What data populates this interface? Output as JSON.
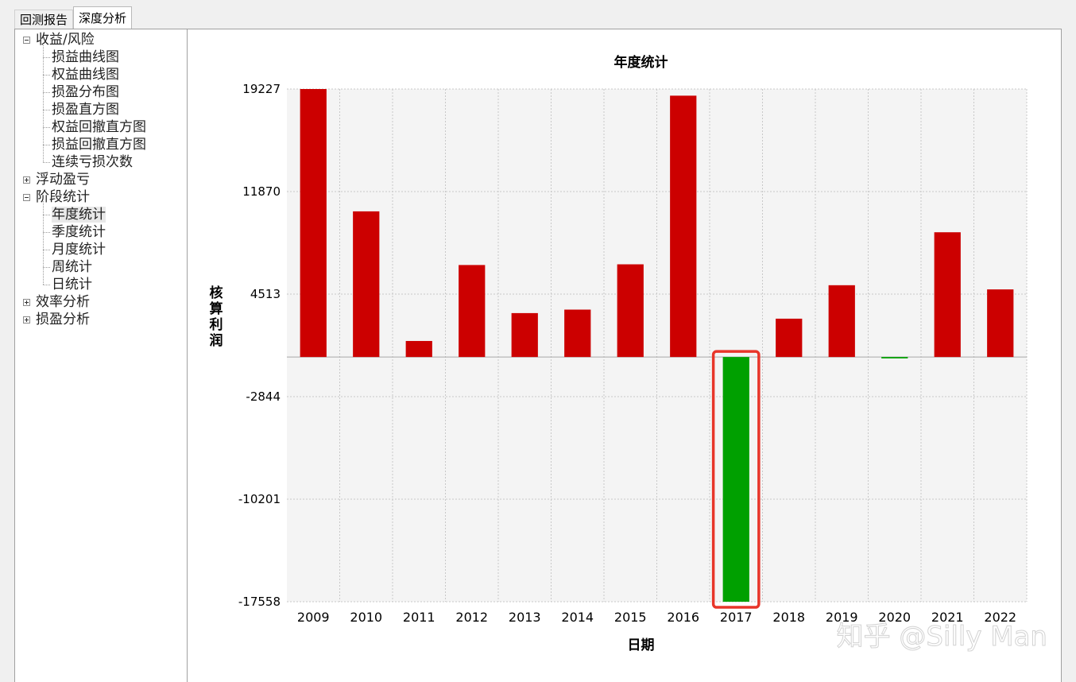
{
  "tabs": [
    {
      "label": "回测报告"
    },
    {
      "label": "深度分析"
    }
  ],
  "tree": [
    {
      "label": "收益/风险",
      "state": "expanded",
      "children": [
        {
          "label": "损益曲线图"
        },
        {
          "label": "权益曲线图"
        },
        {
          "label": "损盈分布图"
        },
        {
          "label": "损盈直方图"
        },
        {
          "label": "权益回撤直方图"
        },
        {
          "label": "损益回撤直方图"
        },
        {
          "label": "连续亏损次数"
        }
      ]
    },
    {
      "label": "浮动盈亏",
      "state": "collapsed",
      "children": []
    },
    {
      "label": "阶段统计",
      "state": "expanded",
      "children": [
        {
          "label": "年度统计",
          "selected": true
        },
        {
          "label": "季度统计"
        },
        {
          "label": "月度统计"
        },
        {
          "label": "周统计"
        },
        {
          "label": "日统计"
        }
      ]
    },
    {
      "label": "效率分析",
      "state": "collapsed",
      "children": []
    },
    {
      "label": "损盈分析",
      "state": "collapsed",
      "children": []
    }
  ],
  "chart_data": {
    "type": "bar",
    "title": "年度统计",
    "xlabel": "日期",
    "ylabel": "核算利润",
    "categories": [
      "2009",
      "2010",
      "2011",
      "2012",
      "2013",
      "2014",
      "2015",
      "2016",
      "2017",
      "2018",
      "2019",
      "2020",
      "2021",
      "2022"
    ],
    "values": [
      19227,
      10450,
      1150,
      6600,
      3150,
      3400,
      6650,
      18750,
      -17558,
      2750,
      5150,
      -100,
      8950,
      4850
    ],
    "yticks": [
      19227,
      11870,
      4513,
      -2844,
      -10201,
      -17558
    ],
    "ylim": [
      -17558,
      19227
    ],
    "grid": true,
    "legend": "none",
    "positive_color": "#cc0000",
    "negative_color": "#00a000",
    "highlighted_category": "2017",
    "highlight_color": "#e8352a"
  },
  "watermark": "知乎 @Silly Man"
}
